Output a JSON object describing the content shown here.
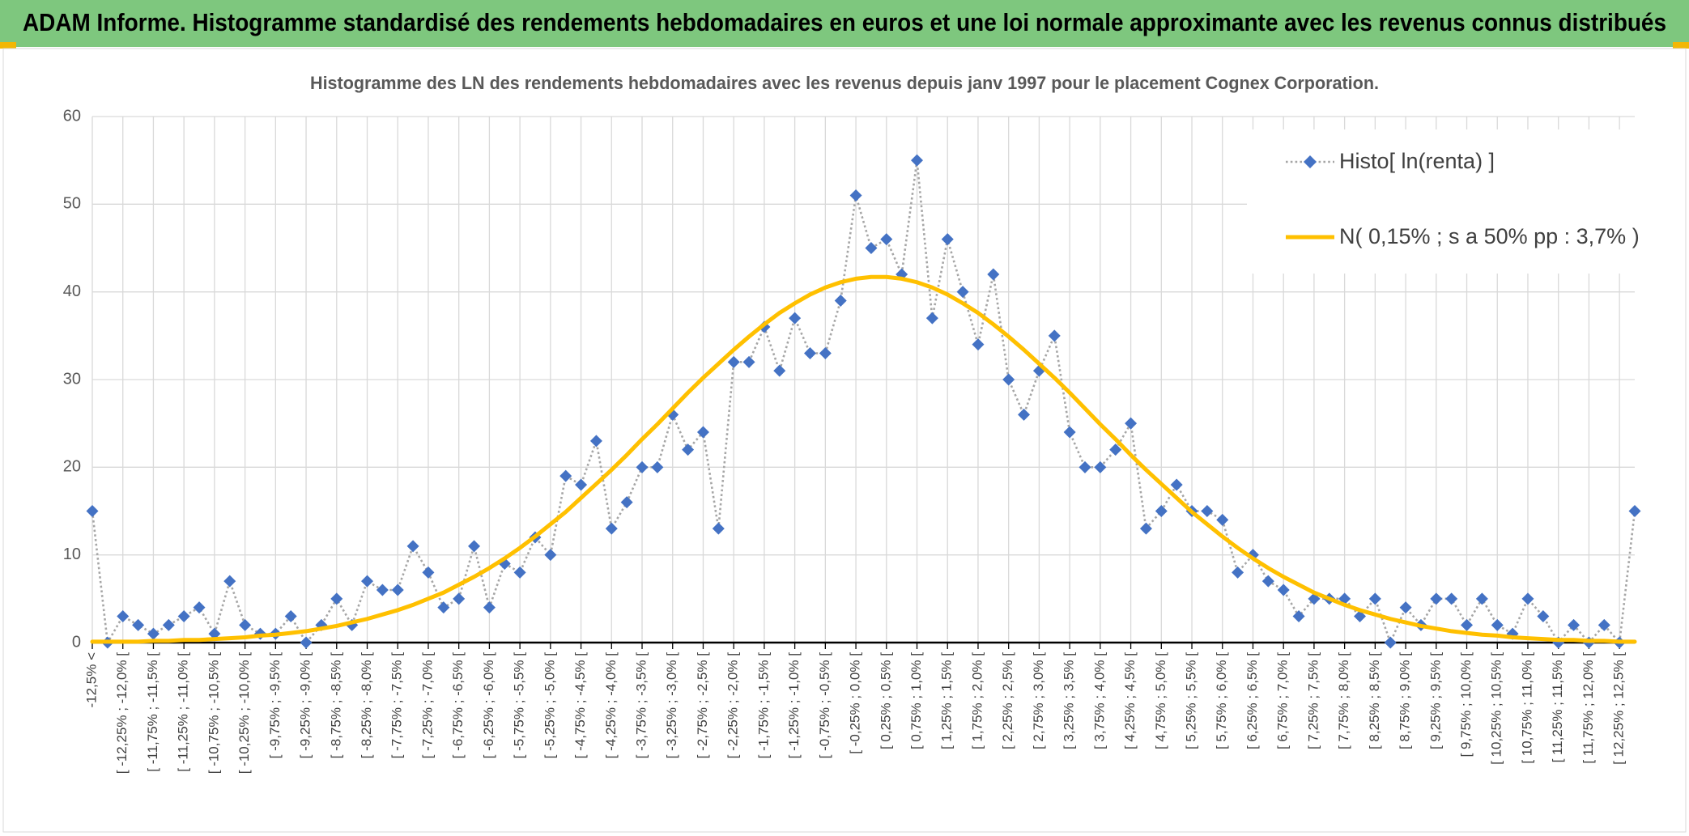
{
  "chart_data": {
    "type": "line",
    "title": "ADAM Informe. Histogramme standardisé des rendements hebdomadaires en euros et une loi normale approximante avec les revenus connus distribués",
    "subtitle": "Histogramme des LN des rendements hebdomadaires avec les revenus depuis janv 1997 pour le placement Cognex Corporation.",
    "categories": [
      "-12,5% <",
      null,
      "[ -12,25% ; -12,0% [",
      null,
      "[ -11,75% ; -11,5% [",
      null,
      "[ -11,25% ; -11,0% [",
      null,
      "[ -10,75% ; -10,5% [",
      null,
      "[ -10,25% ; -10,0% [",
      null,
      "[ -9,75% ; -9,5% [",
      null,
      "[ -9,25% ; -9,0% [",
      null,
      "[ -8,75% ; -8,5% [",
      null,
      "[ -8,25% ; -8,0% [",
      null,
      "[ -7,75% ; -7,5% [",
      null,
      "[ -7,25% ; -7,0% [",
      null,
      "[ -6,75% ; -6,5% [",
      null,
      "[ -6,25% ; -6,0% [",
      null,
      "[ -5,75% ; -5,5% [",
      null,
      "[ -5,25% ; -5,0% [",
      null,
      "[ -4,75% ; -4,5% [",
      null,
      "[ -4,25% ; -4,0% [",
      null,
      "[ -3,75% ; -3,5% [",
      null,
      "[ -3,25% ; -3,0% [",
      null,
      "[ -2,75% ; -2,5% [",
      null,
      "[ -2,25% ; -2,0% [",
      null,
      "[ -1,75% ; -1,5% [",
      null,
      "[ -1,25% ; -1,0% [",
      null,
      "[ -0,75% ; -0,5% [",
      null,
      "[ -0,25% ; 0,0% [",
      null,
      "[ 0,25% ; 0,5% [",
      null,
      "[ 0,75% ; 1,0% [",
      null,
      "[ 1,25% ; 1,5% [",
      null,
      "[ 1,75% ; 2,0% [",
      null,
      "[ 2,25% ; 2,5% [",
      null,
      "[ 2,75% ; 3,0% [",
      null,
      "[ 3,25% ; 3,5% [",
      null,
      "[ 3,75% ; 4,0% [",
      null,
      "[ 4,25% ; 4,5% [",
      null,
      "[ 4,75% ; 5,0% [",
      null,
      "[ 5,25% ; 5,5% [",
      null,
      "[ 5,75% ; 6,0% [",
      null,
      "[ 6,25% ; 6,5% [",
      null,
      "[ 6,75% ; 7,0% [",
      null,
      "[ 7,25% ; 7,5% [",
      null,
      "[ 7,75% ; 8,0% [",
      null,
      "[ 8,25% ; 8,5% [",
      null,
      "[ 8,75% ; 9,0% [",
      null,
      "[ 9,25% ; 9,5% [",
      null,
      "[ 9,75% ; 10,0% [",
      null,
      "[ 10,25% ; 10,5% [",
      null,
      "[ 10,75% ; 11,0% [",
      null,
      "[ 11,25% ; 11,5% [",
      null,
      "[ 11,75% ; 12,0% [",
      null,
      "[ 12,25% ; 12,5% [",
      null
    ],
    "series": [
      {
        "name": "Histo[ ln(renta) ]",
        "color": "#4472c4",
        "line_color": "#a6a6a6",
        "line_style": "dotted",
        "marker": "diamond",
        "values": [
          15,
          0,
          3,
          2,
          1,
          2,
          3,
          4,
          1,
          7,
          2,
          1,
          1,
          3,
          0,
          2,
          5,
          2,
          7,
          6,
          6,
          11,
          8,
          4,
          5,
          11,
          4,
          9,
          8,
          12,
          10,
          19,
          18,
          23,
          13,
          16,
          20,
          20,
          26,
          22,
          24,
          13,
          32,
          32,
          36,
          31,
          37,
          33,
          33,
          39,
          51,
          45,
          46,
          42,
          55,
          37,
          46,
          40,
          34,
          42,
          30,
          26,
          31,
          35,
          24,
          20,
          20,
          22,
          25,
          13,
          15,
          18,
          15,
          15,
          14,
          8,
          10,
          7,
          6,
          3,
          5,
          5,
          5,
          3,
          5,
          0,
          4,
          2,
          5,
          5,
          2,
          5,
          2,
          1,
          5,
          3,
          0,
          2,
          0,
          2,
          0,
          15
        ]
      },
      {
        "name": "N( 0,15% ; s a 50% pp : 3,7% )",
        "color": "#ffc000",
        "line_style": "solid",
        "marker": "none",
        "values": [
          0.1,
          0.1,
          0.1,
          0.1,
          0.2,
          0.2,
          0.3,
          0.3,
          0.4,
          0.5,
          0.6,
          0.8,
          0.9,
          1.1,
          1.3,
          1.6,
          1.9,
          2.3,
          2.7,
          3.2,
          3.7,
          4.3,
          5.0,
          5.7,
          6.6,
          7.5,
          8.5,
          9.6,
          10.8,
          12.1,
          13.5,
          14.9,
          16.5,
          18.1,
          19.7,
          21.4,
          23.2,
          24.9,
          26.7,
          28.5,
          30.2,
          31.8,
          33.4,
          34.9,
          36.3,
          37.6,
          38.7,
          39.7,
          40.5,
          41.1,
          41.5,
          41.7,
          41.7,
          41.5,
          41.1,
          40.5,
          39.7,
          38.7,
          37.6,
          36.3,
          34.9,
          33.4,
          31.8,
          30.2,
          28.5,
          26.7,
          24.9,
          23.2,
          21.4,
          19.7,
          18.1,
          16.5,
          14.9,
          13.5,
          12.1,
          10.8,
          9.6,
          8.5,
          7.5,
          6.6,
          5.7,
          5.0,
          4.3,
          3.7,
          3.2,
          2.7,
          2.3,
          1.9,
          1.6,
          1.3,
          1.1,
          0.9,
          0.8,
          0.6,
          0.5,
          0.4,
          0.3,
          0.3,
          0.2,
          0.2,
          0.1,
          0.1
        ]
      }
    ],
    "ylim": [
      0,
      60
    ],
    "yticks": [
      0,
      10,
      20,
      30,
      40,
      50,
      60
    ],
    "grid": true,
    "legend": "top-right"
  }
}
